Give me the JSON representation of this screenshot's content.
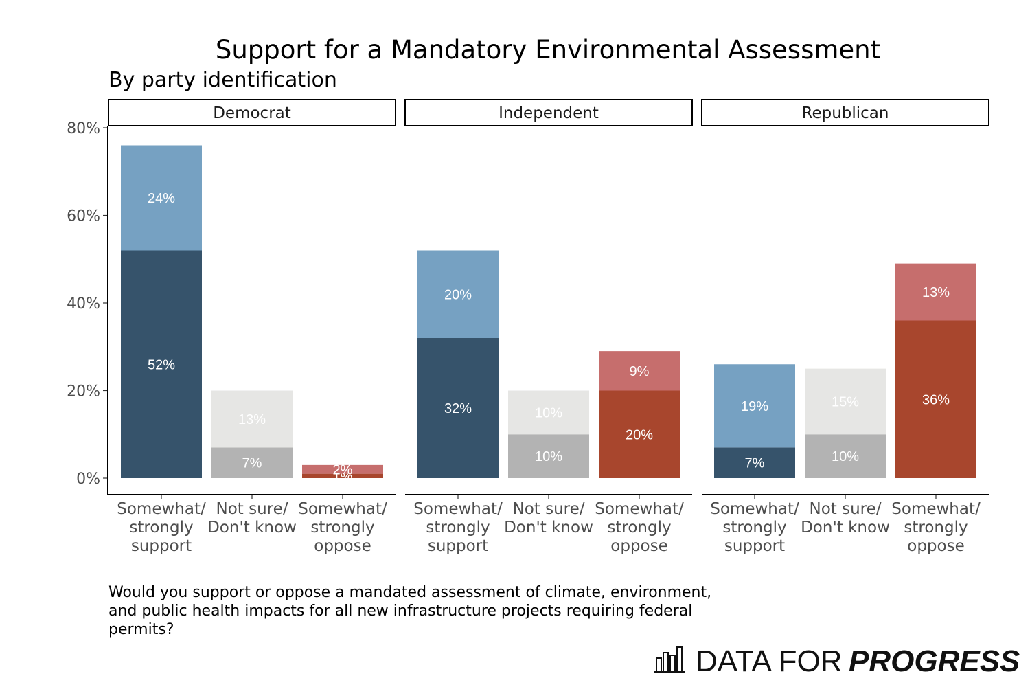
{
  "chart_data": {
    "type": "bar",
    "stacked": true,
    "title": "Support for a Mandatory Environmental Assessment",
    "subtitle": "By party identification",
    "y_ticks": [
      "0%",
      "20%",
      "40%",
      "60%",
      "80%"
    ],
    "ylim": [
      0,
      80
    ],
    "legend": "none",
    "categories": [
      "Somewhat/ strongly support",
      "Not sure/ Don't know",
      "Somewhat/ strongly oppose"
    ],
    "category_lines": [
      [
        "Somewhat/",
        "strongly",
        "support"
      ],
      [
        "Not sure/",
        "Don't know",
        ""
      ],
      [
        "Somewhat/",
        "strongly",
        "oppose"
      ]
    ],
    "panels": [
      {
        "name": "Democrat",
        "bars": [
          {
            "segments": [
              {
                "value": 52,
                "label": "52%"
              },
              {
                "value": 24,
                "label": "24%"
              }
            ]
          },
          {
            "segments": [
              {
                "value": 7,
                "label": "7%"
              },
              {
                "value": 13,
                "label": "13%"
              }
            ]
          },
          {
            "segments": [
              {
                "value": 1,
                "label": "1%"
              },
              {
                "value": 2,
                "label": "2%"
              }
            ]
          }
        ]
      },
      {
        "name": "Independent",
        "bars": [
          {
            "segments": [
              {
                "value": 32,
                "label": "32%"
              },
              {
                "value": 20,
                "label": "20%"
              }
            ]
          },
          {
            "segments": [
              {
                "value": 10,
                "label": "10%"
              },
              {
                "value": 10,
                "label": "10%"
              }
            ]
          },
          {
            "segments": [
              {
                "value": 20,
                "label": "20%"
              },
              {
                "value": 9,
                "label": "9%"
              }
            ]
          }
        ]
      },
      {
        "name": "Republican",
        "bars": [
          {
            "segments": [
              {
                "value": 7,
                "label": "7%"
              },
              {
                "value": 19,
                "label": "19%"
              }
            ]
          },
          {
            "segments": [
              {
                "value": 10,
                "label": "10%"
              },
              {
                "value": 15,
                "label": "15%"
              }
            ]
          },
          {
            "segments": [
              {
                "value": 36,
                "label": "36%"
              },
              {
                "value": 13,
                "label": "13%"
              }
            ]
          }
        ]
      }
    ],
    "colors": {
      "support": [
        "#36536b",
        "#76a1c2"
      ],
      "unsure": [
        "#b3b3b3",
        "#e6e6e4"
      ],
      "oppose": [
        "#a8462d",
        "#c66e6d"
      ]
    },
    "label_colors": {
      "support": [
        "#ffffff",
        "#ffffff"
      ],
      "unsure": [
        "#ffffff",
        "#ffffff"
      ],
      "oppose": [
        "#ffffff",
        "#ffffff"
      ]
    }
  },
  "footnote_lines": [
    "Would you support or oppose a mandated assessment of climate, environment,",
    "and public health impacts for all new infrastructure projects requiring federal",
    "permits?"
  ],
  "logo": {
    "text_regular": "DATA FOR",
    "text_bold": "PROGRESS",
    "icon": "bar-chart-icon"
  }
}
